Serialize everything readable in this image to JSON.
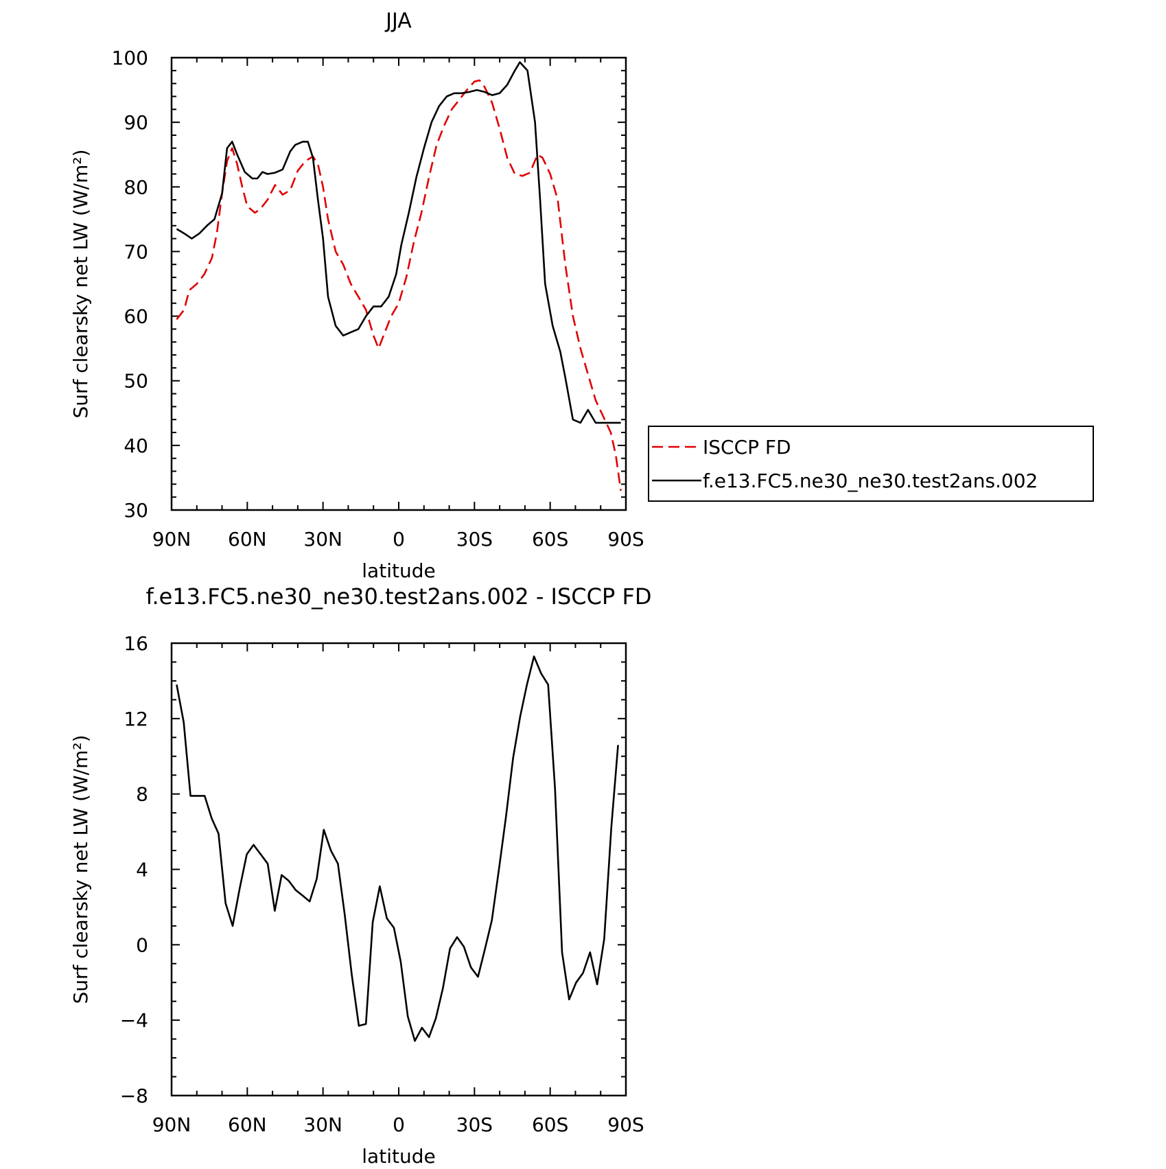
{
  "chart_data": [
    {
      "type": "line",
      "title": "JJA",
      "xlabel": "latitude",
      "ylabel": "Surf clearsky net LW (W/m²)",
      "xlim": [
        90,
        -90
      ],
      "ylim": [
        30,
        100
      ],
      "xticks": [
        90,
        60,
        30,
        0,
        -30,
        -60,
        -90
      ],
      "xtick_labels": [
        "90N",
        "60N",
        "30N",
        "0",
        "30S",
        "60S",
        "90S"
      ],
      "yticks": [
        30,
        40,
        50,
        60,
        70,
        80,
        90,
        100
      ],
      "ytick_labels": [
        "30",
        "40",
        "50",
        "60",
        "70",
        "80",
        "90",
        "100"
      ],
      "grid": false,
      "legend_position": "right",
      "series": [
        {
          "name": "ISCCP FD",
          "color": "#e00000",
          "dash": "dashed",
          "x": [
            88,
            85,
            83,
            80,
            77,
            74,
            72,
            70,
            68,
            66,
            64,
            62,
            60,
            57,
            55,
            52,
            49,
            46,
            43,
            40,
            37,
            34,
            32,
            30,
            28,
            25,
            22,
            19,
            16,
            13,
            10,
            8,
            6,
            3,
            0,
            -3,
            -6,
            -9,
            -12,
            -15,
            -18,
            -21,
            -24,
            -27,
            -30,
            -32,
            -34,
            -37,
            -40,
            -43,
            -46,
            -49,
            -52,
            -55,
            -57,
            -60,
            -63,
            -66,
            -69,
            -72,
            -75,
            -78,
            -81,
            -84,
            -86,
            -88
          ],
          "y": [
            59.5,
            61,
            64,
            65,
            66.5,
            69,
            73,
            79,
            84,
            86,
            83.5,
            80,
            77,
            76,
            76.5,
            78,
            80.3,
            78.8,
            79.5,
            82.5,
            84,
            84.7,
            83.5,
            80,
            75,
            70,
            68,
            65,
            63,
            61,
            57,
            55,
            57,
            60,
            62,
            66,
            71.5,
            76,
            81.5,
            86.5,
            89.5,
            92,
            93.5,
            95,
            96.3,
            96.5,
            95.5,
            93,
            89,
            84.5,
            82,
            81.7,
            82.2,
            85,
            84.5,
            82,
            78,
            68,
            60,
            55,
            51,
            47,
            44.5,
            42,
            38.5,
            33
          ]
        },
        {
          "name": "f.e13.FC5.ne30_ne30.test2ans.002",
          "color": "#000000",
          "dash": "solid",
          "x": [
            88,
            85,
            82,
            79,
            76,
            73,
            70,
            68,
            66,
            64,
            61,
            58,
            56,
            54,
            52,
            49,
            46,
            43,
            41,
            38,
            36,
            34,
            32,
            30,
            28,
            25,
            22,
            19,
            16,
            13,
            10,
            7,
            4,
            1,
            -1,
            -4,
            -7,
            -10,
            -13,
            -16,
            -19,
            -22,
            -25,
            -28,
            -31,
            -34,
            -37,
            -40,
            -43,
            -46,
            -48,
            -51,
            -54,
            -56,
            -58,
            -61,
            -64,
            -66,
            -69,
            -72,
            -75,
            -78,
            -80,
            -82,
            -84,
            -86,
            -88
          ],
          "y": [
            73.5,
            72.8,
            72,
            72.8,
            74,
            75,
            79,
            86,
            87,
            85,
            82.3,
            81.3,
            81.3,
            82.3,
            82,
            82.2,
            82.7,
            85.5,
            86.5,
            87,
            87,
            84.5,
            78,
            72,
            63,
            58.5,
            57,
            57.5,
            58,
            60,
            61.5,
            61.5,
            63,
            66.5,
            71,
            76,
            81.5,
            86,
            90,
            92.5,
            94,
            94.5,
            94.5,
            94.7,
            95,
            94.7,
            94.2,
            94.5,
            95.8,
            98,
            99.3,
            98,
            90,
            78,
            65,
            58.5,
            54.5,
            50.5,
            44,
            43.5,
            45.5,
            43.5,
            43.5,
            43.5,
            43.5,
            43.5,
            43.5
          ]
        }
      ]
    },
    {
      "type": "line",
      "title": "f.e13.FC5.ne30_ne30.test2ans.002 - ISCCP FD",
      "xlabel": "latitude",
      "ylabel": "Surf clearsky net LW (W/m²)",
      "xlim": [
        90,
        -90
      ],
      "ylim": [
        -8,
        16
      ],
      "xticks": [
        90,
        60,
        30,
        0,
        -30,
        -60,
        -90
      ],
      "xtick_labels": [
        "90N",
        "60N",
        "30N",
        "0",
        "30S",
        "60S",
        "90S"
      ],
      "yticks": [
        -8,
        -4,
        0,
        4,
        8,
        12,
        16
      ],
      "ytick_labels": [
        "−8",
        "−4",
        "0",
        "4",
        "8",
        "12",
        "16"
      ],
      "grid": false,
      "series": [
        {
          "color": "#000000",
          "dash": "solid",
          "x": [
            88,
            85.2,
            82.5,
            79.7,
            76.9,
            74.1,
            71.4,
            68.6,
            65.8,
            63,
            60.2,
            57.5,
            54.7,
            51.9,
            49.1,
            46.4,
            43.6,
            40.8,
            38,
            35.3,
            32.5,
            29.7,
            26.9,
            24.1,
            21.4,
            18.6,
            15.8,
            13,
            10.3,
            7.5,
            4.7,
            1.9,
            -0.8,
            -3.6,
            -6.4,
            -9.2,
            -12,
            -14.7,
            -17.5,
            -20.3,
            -23.1,
            -25.8,
            -28.6,
            -31.4,
            -34.2,
            -36.9,
            -39.7,
            -42.5,
            -45.3,
            -48.1,
            -50.8,
            -53.6,
            -56.4,
            -59.2,
            -61.9,
            -64.7,
            -67.5,
            -70.3,
            -73,
            -75.8,
            -78.6,
            -81.4,
            -84.2,
            -86.9
          ],
          "y": [
            13.8,
            11.8,
            7.9,
            7.9,
            7.9,
            6.7,
            5.9,
            2.2,
            1,
            3,
            4.8,
            5.3,
            4.8,
            4.3,
            1.8,
            3.7,
            3.4,
            2.9,
            2.6,
            2.3,
            3.5,
            6.1,
            5,
            4.3,
            1.6,
            -1.6,
            -4.3,
            -4.2,
            1.2,
            3.1,
            1.4,
            0.9,
            -0.9,
            -3.8,
            -5.1,
            -4.4,
            -4.9,
            -3.9,
            -2.3,
            -0.2,
            0.4,
            -0.1,
            -1.2,
            -1.7,
            -0.2,
            1.3,
            4,
            6.8,
            9.9,
            12.1,
            13.8,
            15.3,
            14.4,
            13.8,
            8.3,
            -0.4,
            -2.9,
            -2,
            -1.5,
            -0.4,
            -2.1,
            0.3,
            6.2,
            10.6
          ]
        }
      ]
    }
  ]
}
